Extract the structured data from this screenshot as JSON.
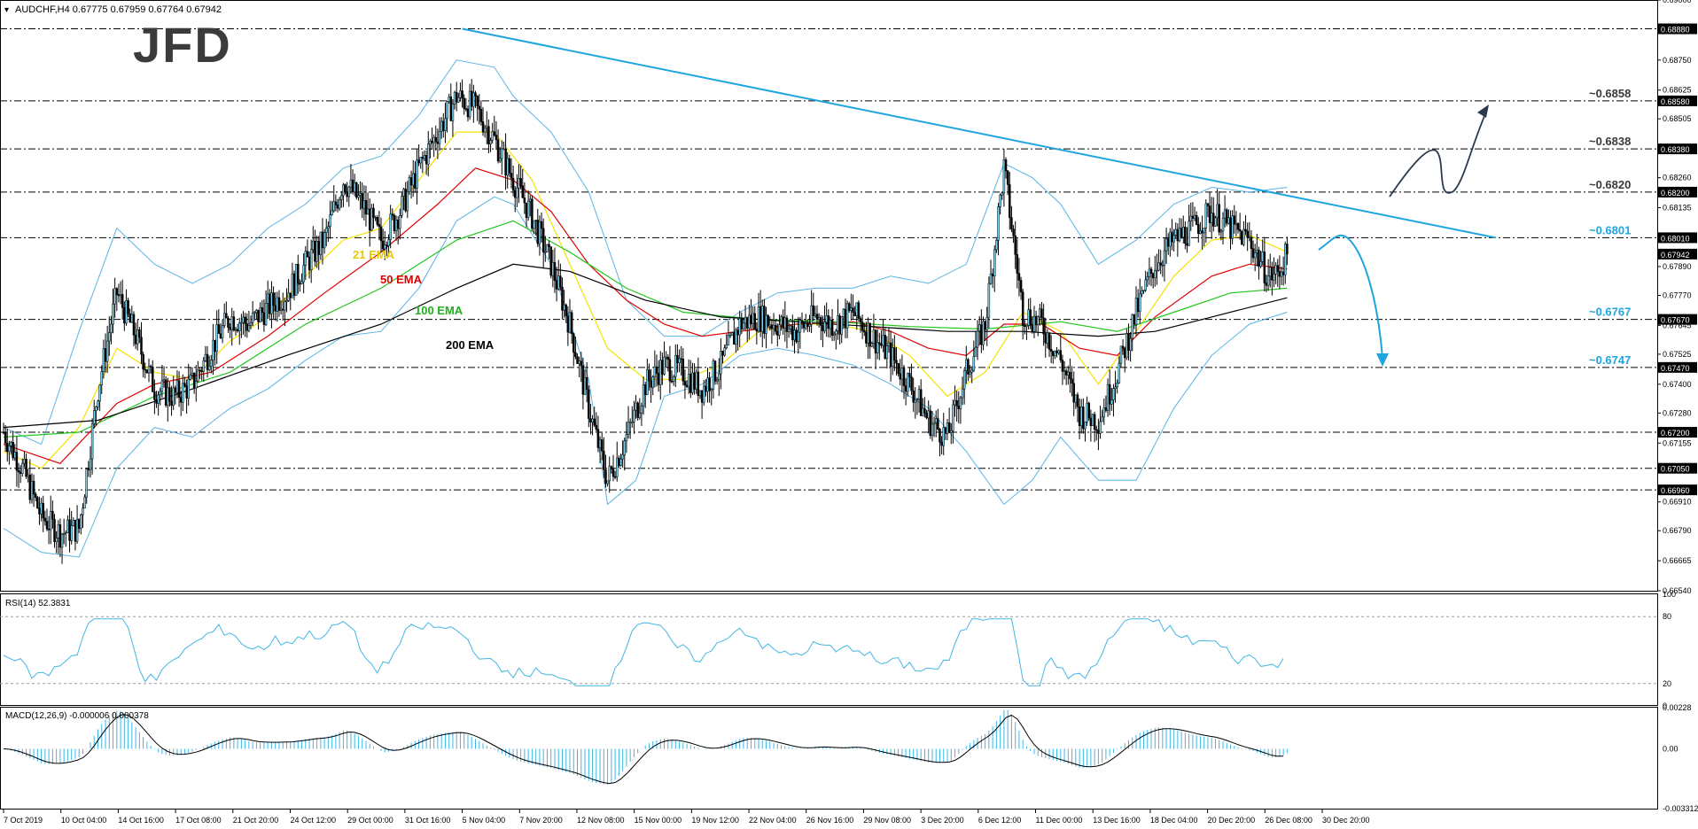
{
  "header": {
    "symbol_line": "AUDCHF,H4  0.67775 0.67959 0.67764 0.67942",
    "rsi_label": "RSI(14) 52.3831",
    "macd_label": "MACD(12,26,9) -0.000006 0.000378"
  },
  "logo": {
    "text": "JFD"
  },
  "colors": {
    "candle": "#000000",
    "bollinger": "#5ab4e6",
    "trendline": "#1fa5e0",
    "ema21": "#f5e100",
    "ema50": "#e00000",
    "ema100": "#22c71e",
    "ema200": "#000000",
    "annotation_blue": "#1fa5e0",
    "annotation_dark": "#2b3a4d",
    "indicator": "#41b6e6"
  },
  "ema_labels": [
    {
      "text": "21 EMA",
      "color": "#e6c800"
    },
    {
      "text": "50 EMA",
      "color": "#e00000"
    },
    {
      "text": "100 EMA",
      "color": "#22b01e"
    },
    {
      "text": "200 EMA",
      "color": "#000000"
    }
  ],
  "level_labels": [
    {
      "text": "~0.6858",
      "value": 0.6858,
      "color": "#3a3a3a"
    },
    {
      "text": "~0.6838",
      "value": 0.6838,
      "color": "#3a3a3a"
    },
    {
      "text": "~0.6820",
      "value": 0.682,
      "color": "#3a3a3a"
    },
    {
      "text": "~0.6801",
      "value": 0.6801,
      "color": "#1fa5e0"
    },
    {
      "text": "~0.6767",
      "value": 0.6767,
      "color": "#1fa5e0"
    },
    {
      "text": "~0.6747",
      "value": 0.6747,
      "color": "#1fa5e0"
    }
  ],
  "chart_data": {
    "type": "candlestick",
    "title": "AUDCHF,H4",
    "ylim": [
      0.6654,
      0.69
    ],
    "price_ticks": [
      "0.69000",
      "0.68880",
      "0.68750",
      "0.68625",
      "0.68580",
      "0.68505",
      "0.68380",
      "0.68260",
      "0.68200",
      "0.68135",
      "0.68010",
      "0.67942",
      "0.67890",
      "0.67770",
      "0.67670",
      "0.67645",
      "0.67525",
      "0.67470",
      "0.67400",
      "0.67280",
      "0.67200",
      "0.67155",
      "0.67050",
      "0.66960",
      "0.66910",
      "0.66790",
      "0.66665",
      "0.66540"
    ],
    "highlighted_ticks": [
      "0.68880",
      "0.68580",
      "0.68380",
      "0.68200",
      "0.68010",
      "0.67942",
      "0.67670",
      "0.67470",
      "0.67200",
      "0.67050",
      "0.66960"
    ],
    "horizontal_levels": [
      0.6888,
      0.6858,
      0.6838,
      0.682,
      0.6801,
      0.6767,
      0.6747,
      0.672,
      0.6705,
      0.6696
    ],
    "x_ticks": [
      "7 Oct 2019",
      "10 Oct 04:00",
      "14 Oct 16:00",
      "17 Oct 08:00",
      "21 Oct 20:00",
      "24 Oct 12:00",
      "29 Oct 00:00",
      "31 Oct 16:00",
      "5 Nov 04:00",
      "7 Nov 20:00",
      "12 Nov 08:00",
      "15 Nov 00:00",
      "19 Nov 12:00",
      "22 Nov 04:00",
      "26 Nov 16:00",
      "29 Nov 08:00",
      "3 Dec 20:00",
      "6 Dec 12:00",
      "11 Dec 00:00",
      "13 Dec 16:00",
      "18 Dec 04:00",
      "20 Dec 20:00",
      "26 Dec 08:00",
      "30 Dec 20:00"
    ],
    "price_path": [
      [
        0,
        0.672
      ],
      [
        10,
        0.6705
      ],
      [
        20,
        0.6685
      ],
      [
        30,
        0.6678
      ],
      [
        40,
        0.668
      ],
      [
        50,
        0.6738
      ],
      [
        60,
        0.6778
      ],
      [
        70,
        0.676
      ],
      [
        80,
        0.6738
      ],
      [
        90,
        0.6735
      ],
      [
        100,
        0.674
      ],
      [
        110,
        0.6755
      ],
      [
        120,
        0.6768
      ],
      [
        130,
        0.6765
      ],
      [
        140,
        0.6772
      ],
      [
        150,
        0.6778
      ],
      [
        160,
        0.679
      ],
      [
        170,
        0.68
      ],
      [
        180,
        0.6825
      ],
      [
        190,
        0.6815
      ],
      [
        200,
        0.68
      ],
      [
        210,
        0.6812
      ],
      [
        220,
        0.683
      ],
      [
        230,
        0.6845
      ],
      [
        240,
        0.686
      ],
      [
        250,
        0.6855
      ],
      [
        260,
        0.6842
      ],
      [
        270,
        0.6825
      ],
      [
        280,
        0.681
      ],
      [
        290,
        0.679
      ],
      [
        300,
        0.6765
      ],
      [
        310,
        0.673
      ],
      [
        320,
        0.67
      ],
      [
        330,
        0.6718
      ],
      [
        340,
        0.674
      ],
      [
        350,
        0.6748
      ],
      [
        360,
        0.6745
      ],
      [
        370,
        0.6738
      ],
      [
        380,
        0.6748
      ],
      [
        390,
        0.6765
      ],
      [
        400,
        0.6768
      ],
      [
        410,
        0.6765
      ],
      [
        420,
        0.6762
      ],
      [
        430,
        0.6768
      ],
      [
        440,
        0.6765
      ],
      [
        450,
        0.677
      ],
      [
        460,
        0.676
      ],
      [
        470,
        0.6752
      ],
      [
        480,
        0.674
      ],
      [
        490,
        0.6725
      ],
      [
        500,
        0.6718
      ],
      [
        510,
        0.6745
      ],
      [
        520,
        0.6765
      ],
      [
        530,
        0.683
      ],
      [
        540,
        0.677
      ],
      [
        550,
        0.6765
      ],
      [
        560,
        0.675
      ],
      [
        570,
        0.6728
      ],
      [
        580,
        0.6725
      ],
      [
        590,
        0.6745
      ],
      [
        600,
        0.677
      ],
      [
        610,
        0.679
      ],
      [
        620,
        0.68
      ],
      [
        630,
        0.6805
      ],
      [
        640,
        0.6812
      ],
      [
        650,
        0.6805
      ],
      [
        660,
        0.68
      ],
      [
        670,
        0.6785
      ],
      [
        675,
        0.6786
      ],
      [
        680,
        0.6794
      ]
    ],
    "bollinger_upper": [
      [
        0,
        0.6722
      ],
      [
        20,
        0.6715
      ],
      [
        40,
        0.6762
      ],
      [
        60,
        0.6805
      ],
      [
        80,
        0.679
      ],
      [
        100,
        0.6782
      ],
      [
        120,
        0.679
      ],
      [
        140,
        0.6805
      ],
      [
        160,
        0.6815
      ],
      [
        180,
        0.683
      ],
      [
        200,
        0.6835
      ],
      [
        220,
        0.6852
      ],
      [
        240,
        0.6875
      ],
      [
        260,
        0.6872
      ],
      [
        270,
        0.686
      ],
      [
        290,
        0.6845
      ],
      [
        310,
        0.682
      ],
      [
        330,
        0.6775
      ],
      [
        350,
        0.676
      ],
      [
        370,
        0.676
      ],
      [
        390,
        0.677
      ],
      [
        410,
        0.6778
      ],
      [
        430,
        0.678
      ],
      [
        450,
        0.678
      ],
      [
        470,
        0.6785
      ],
      [
        490,
        0.6782
      ],
      [
        510,
        0.679
      ],
      [
        530,
        0.6832
      ],
      [
        545,
        0.6826
      ],
      [
        560,
        0.6815
      ],
      [
        580,
        0.679
      ],
      [
        600,
        0.68
      ],
      [
        620,
        0.6815
      ],
      [
        640,
        0.6822
      ],
      [
        660,
        0.682
      ],
      [
        680,
        0.6822
      ]
    ],
    "bollinger_lower": [
      [
        0,
        0.668
      ],
      [
        20,
        0.667
      ],
      [
        40,
        0.6668
      ],
      [
        60,
        0.6705
      ],
      [
        80,
        0.6722
      ],
      [
        100,
        0.6718
      ],
      [
        120,
        0.673
      ],
      [
        140,
        0.6738
      ],
      [
        160,
        0.675
      ],
      [
        180,
        0.676
      ],
      [
        200,
        0.6762
      ],
      [
        220,
        0.678
      ],
      [
        240,
        0.6808
      ],
      [
        260,
        0.6818
      ],
      [
        270,
        0.6815
      ],
      [
        290,
        0.679
      ],
      [
        310,
        0.6742
      ],
      [
        320,
        0.669
      ],
      [
        335,
        0.67
      ],
      [
        350,
        0.6735
      ],
      [
        370,
        0.674
      ],
      [
        390,
        0.6752
      ],
      [
        410,
        0.6755
      ],
      [
        430,
        0.6752
      ],
      [
        450,
        0.6748
      ],
      [
        470,
        0.674
      ],
      [
        490,
        0.673
      ],
      [
        510,
        0.6712
      ],
      [
        530,
        0.669
      ],
      [
        545,
        0.67
      ],
      [
        560,
        0.6718
      ],
      [
        580,
        0.67
      ],
      [
        600,
        0.67
      ],
      [
        620,
        0.673
      ],
      [
        640,
        0.6752
      ],
      [
        660,
        0.6765
      ],
      [
        680,
        0.677
      ]
    ],
    "ema21": [
      [
        0,
        0.6712
      ],
      [
        20,
        0.6705
      ],
      [
        40,
        0.6722
      ],
      [
        60,
        0.6755
      ],
      [
        80,
        0.6745
      ],
      [
        100,
        0.6742
      ],
      [
        120,
        0.6758
      ],
      [
        140,
        0.6768
      ],
      [
        160,
        0.6785
      ],
      [
        180,
        0.68
      ],
      [
        200,
        0.6805
      ],
      [
        220,
        0.6825
      ],
      [
        240,
        0.6845
      ],
      [
        260,
        0.6845
      ],
      [
        280,
        0.6825
      ],
      [
        300,
        0.679
      ],
      [
        320,
        0.6755
      ],
      [
        340,
        0.6742
      ],
      [
        360,
        0.6742
      ],
      [
        380,
        0.6748
      ],
      [
        400,
        0.6762
      ],
      [
        420,
        0.6765
      ],
      [
        440,
        0.6765
      ],
      [
        460,
        0.6762
      ],
      [
        480,
        0.6752
      ],
      [
        500,
        0.6735
      ],
      [
        520,
        0.6745
      ],
      [
        540,
        0.677
      ],
      [
        560,
        0.6762
      ],
      [
        580,
        0.674
      ],
      [
        600,
        0.6762
      ],
      [
        620,
        0.6785
      ],
      [
        640,
        0.68
      ],
      [
        660,
        0.6802
      ],
      [
        680,
        0.6795
      ]
    ],
    "ema50": [
      [
        0,
        0.6715
      ],
      [
        30,
        0.6707
      ],
      [
        60,
        0.6732
      ],
      [
        80,
        0.674
      ],
      [
        110,
        0.6745
      ],
      [
        140,
        0.676
      ],
      [
        170,
        0.6778
      ],
      [
        200,
        0.6795
      ],
      [
        230,
        0.6815
      ],
      [
        250,
        0.683
      ],
      [
        270,
        0.6825
      ],
      [
        290,
        0.6812
      ],
      [
        310,
        0.679
      ],
      [
        330,
        0.6775
      ],
      [
        350,
        0.6765
      ],
      [
        370,
        0.676
      ],
      [
        390,
        0.6762
      ],
      [
        420,
        0.6765
      ],
      [
        450,
        0.6766
      ],
      [
        470,
        0.6762
      ],
      [
        490,
        0.6755
      ],
      [
        510,
        0.6752
      ],
      [
        530,
        0.6765
      ],
      [
        550,
        0.6765
      ],
      [
        570,
        0.6755
      ],
      [
        590,
        0.6752
      ],
      [
        610,
        0.6768
      ],
      [
        640,
        0.6785
      ],
      [
        660,
        0.679
      ],
      [
        680,
        0.6788
      ]
    ],
    "ema100": [
      [
        0,
        0.6718
      ],
      [
        40,
        0.672
      ],
      [
        80,
        0.6735
      ],
      [
        120,
        0.6745
      ],
      [
        160,
        0.6765
      ],
      [
        200,
        0.678
      ],
      [
        240,
        0.68
      ],
      [
        270,
        0.6808
      ],
      [
        300,
        0.6795
      ],
      [
        330,
        0.678
      ],
      [
        360,
        0.677
      ],
      [
        400,
        0.6767
      ],
      [
        440,
        0.6766
      ],
      [
        480,
        0.6764
      ],
      [
        520,
        0.6763
      ],
      [
        560,
        0.6766
      ],
      [
        590,
        0.6762
      ],
      [
        620,
        0.677
      ],
      [
        650,
        0.6778
      ],
      [
        680,
        0.678
      ]
    ],
    "ema200": [
      [
        0,
        0.6722
      ],
      [
        50,
        0.6725
      ],
      [
        100,
        0.6738
      ],
      [
        150,
        0.6752
      ],
      [
        200,
        0.6765
      ],
      [
        240,
        0.678
      ],
      [
        270,
        0.679
      ],
      [
        300,
        0.6787
      ],
      [
        340,
        0.6775
      ],
      [
        380,
        0.6768
      ],
      [
        420,
        0.6766
      ],
      [
        460,
        0.6764
      ],
      [
        500,
        0.6762
      ],
      [
        540,
        0.6762
      ],
      [
        580,
        0.676
      ],
      [
        610,
        0.6762
      ],
      [
        640,
        0.6768
      ],
      [
        680,
        0.6776
      ]
    ],
    "trendline": {
      "from": [
        243,
        0.6888
      ],
      "to": [
        700,
        0.6801
      ]
    },
    "rsi": {
      "ylim": [
        0,
        100
      ],
      "ticks": [
        "100",
        "80",
        "20",
        "0"
      ],
      "levels": [
        80,
        20
      ],
      "last": 52.3831
    },
    "macd": {
      "ticks": [
        "0.00228",
        "0.00",
        "-0.003312"
      ],
      "last_main": -6e-06,
      "last_signal": 0.000378
    }
  }
}
